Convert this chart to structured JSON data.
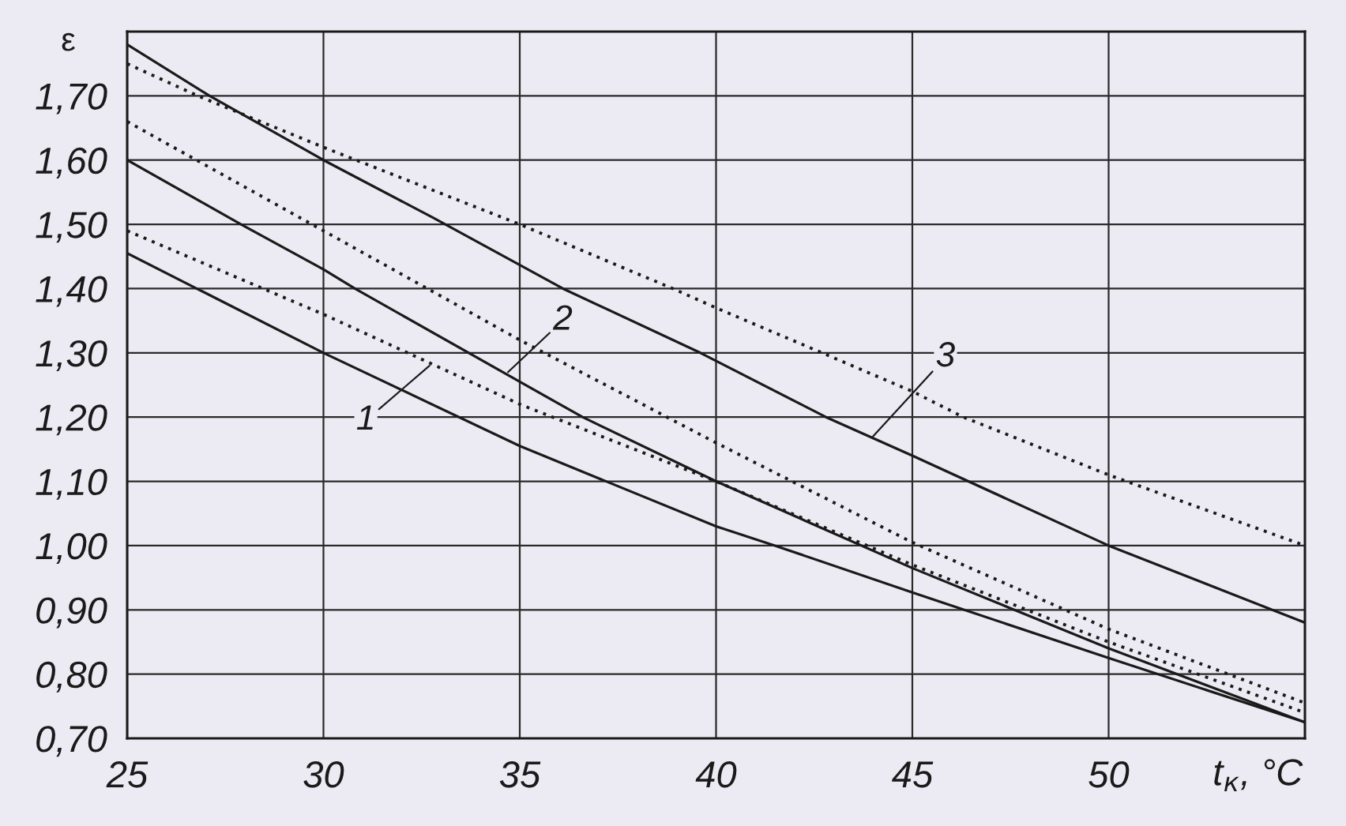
{
  "chart_data": {
    "type": "line",
    "xlabel": "t$_{к}$, °C",
    "ylabel": "ε",
    "xlim": [
      25,
      55
    ],
    "ylim": [
      0.7,
      1.8
    ],
    "xticks": [
      25,
      30,
      35,
      40,
      45,
      50
    ],
    "yticks": [
      {
        "value": 0.7,
        "label": "0,70"
      },
      {
        "value": 0.8,
        "label": "0,80"
      },
      {
        "value": 0.9,
        "label": "0,90"
      },
      {
        "value": 1.0,
        "label": "1,00"
      },
      {
        "value": 1.1,
        "label": "1,10"
      },
      {
        "value": 1.2,
        "label": "1,20"
      },
      {
        "value": 1.3,
        "label": "1,30"
      },
      {
        "value": 1.4,
        "label": "1,40"
      },
      {
        "value": 1.5,
        "label": "1,50"
      },
      {
        "value": 1.6,
        "label": "1,60"
      },
      {
        "value": 1.7,
        "label": "1,70"
      }
    ],
    "grid": true,
    "annotations": [
      {
        "text": "1",
        "x": 32.7,
        "y": 1.28
      },
      {
        "text": "2",
        "x": 34.7,
        "y": 1.27
      },
      {
        "text": "3",
        "x": 44.0,
        "y": 1.17
      }
    ],
    "series": [
      {
        "color": "#1a1a1a",
        "line_style": "solid",
        "x": [
          25,
          30,
          35,
          40,
          41.5,
          45,
          50,
          55
        ],
        "values": [
          1.455,
          1.3,
          1.155,
          1.03,
          1.0,
          0.927,
          0.825,
          0.725
        ]
      },
      {
        "color": "#1a1a1a",
        "line_style": "dotted",
        "x": [
          25,
          30,
          35,
          40,
          45,
          50,
          55
        ],
        "values": [
          1.49,
          1.36,
          1.22,
          1.1,
          0.97,
          0.85,
          0.74
        ]
      },
      {
        "color": "#1a1a1a",
        "line_style": "solid",
        "x": [
          25,
          27.9,
          30,
          30.8,
          35,
          36.6,
          40,
          45,
          50,
          55
        ],
        "values": [
          1.6,
          1.5,
          1.43,
          1.4,
          1.255,
          1.2,
          1.1,
          0.965,
          0.84,
          0.725
        ]
      },
      {
        "color": "#1a1a1a",
        "line_style": "dotted",
        "x": [
          25,
          30,
          35,
          40,
          45,
          50,
          55
        ],
        "values": [
          1.66,
          1.49,
          1.32,
          1.16,
          1.005,
          0.87,
          0.755
        ]
      },
      {
        "color": "#1a1a1a",
        "line_style": "solid",
        "x": [
          25,
          27.1,
          30,
          32.8,
          36.1,
          39.6,
          42.8,
          45,
          50,
          55
        ],
        "values": [
          1.78,
          1.7,
          1.6,
          1.51,
          1.4,
          1.3,
          1.2,
          1.14,
          1.0,
          0.88
        ]
      },
      {
        "color": "#1a1a1a",
        "line_style": "dotted",
        "x": [
          25,
          26.8,
          30,
          35,
          38.9,
          40,
          42.7,
          45,
          46.3,
          50,
          55
        ],
        "values": [
          1.75,
          1.7,
          1.62,
          1.5,
          1.4,
          1.37,
          1.3,
          1.24,
          1.2,
          1.11,
          1.0
        ]
      }
    ]
  }
}
